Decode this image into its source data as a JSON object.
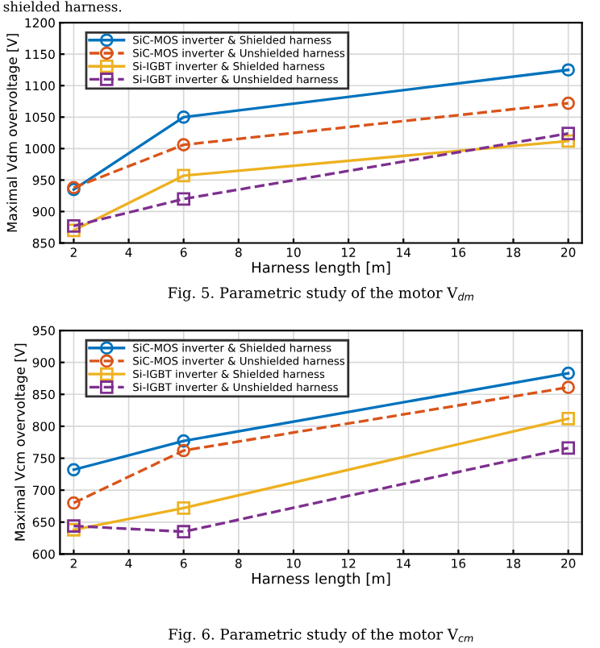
{
  "chart_data": [
    {
      "type": "line",
      "xlabel": "Harness length [m]",
      "ylabel": "Maximal Vdm overvoltage [V]",
      "x": [
        2,
        6,
        20
      ],
      "xlim": [
        1.5,
        20.5
      ],
      "xticks": [
        2,
        4,
        6,
        8,
        10,
        12,
        14,
        16,
        18,
        20
      ],
      "ylim": [
        850,
        1200
      ],
      "yticks": [
        850,
        900,
        950,
        1000,
        1050,
        1100,
        1150,
        1200
      ],
      "grid": true,
      "legend": "top left",
      "annotations": [
        "shielded harness.",
        "Fig. 5. Parametric study of the motor V$_{dm}$"
      ],
      "series": [
        {
          "name": "SiC-MOS inverter & Shielded harness",
          "color": "#0072bd",
          "marker": "circle",
          "line_style": "solid",
          "values": [
            935,
            1050,
            1125
          ]
        },
        {
          "name": "SiC-MOS inverter & Unshielded harness",
          "color": "#d95319",
          "marker": "circle",
          "line_style": "dashed",
          "values": [
            938,
            1006,
            1072
          ]
        },
        {
          "name": "Si-IGBT inverter & Shielded harness",
          "color": "#edb120",
          "marker": "square",
          "line_style": "solid",
          "values": [
            870,
            957,
            1012
          ]
        },
        {
          "name": "Si-IGBT inverter & Unshielded harness",
          "color": "#7e2f8e",
          "marker": "square",
          "line_style": "dashed",
          "values": [
            877,
            920,
            1024
          ]
        }
      ]
    },
    {
      "type": "line",
      "xlabel": "Harness length [m]",
      "ylabel": "Maximal Vcm overvoltage [V]",
      "x": [
        2,
        6,
        20
      ],
      "xlim": [
        1.5,
        20.5
      ],
      "xticks": [
        2,
        4,
        6,
        8,
        10,
        12,
        14,
        16,
        18,
        20
      ],
      "ylim": [
        600,
        950
      ],
      "yticks": [
        600,
        650,
        700,
        750,
        800,
        850,
        900,
        950
      ],
      "grid": true,
      "legend": "top left",
      "annotations": [
        "Fig. 6. Parametric study of the motor V$_{cm}$"
      ],
      "series": [
        {
          "name": "SiC-MOS inverter & Shielded harness",
          "color": "#0072bd",
          "marker": "circle",
          "line_style": "solid",
          "values": [
            732,
            777,
            883
          ]
        },
        {
          "name": "SiC-MOS inverter & Unshielded harness",
          "color": "#d95319",
          "marker": "circle",
          "line_style": "dashed",
          "values": [
            680,
            762,
            861
          ]
        },
        {
          "name": "Si-IGBT inverter & Shielded harness",
          "color": "#edb120",
          "marker": "square",
          "line_style": "solid",
          "values": [
            638,
            672,
            812
          ]
        },
        {
          "name": "Si-IGBT inverter & Unshielded harness",
          "color": "#7e2f8e",
          "marker": "square",
          "line_style": "dashed",
          "values": [
            644,
            635,
            766
          ]
        }
      ]
    }
  ]
}
